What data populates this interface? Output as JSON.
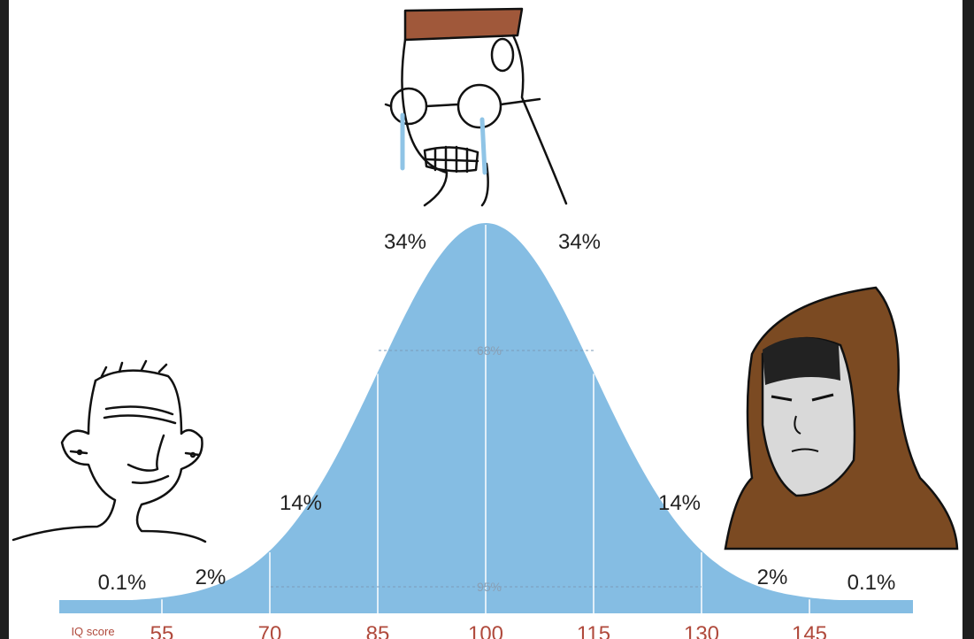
{
  "percentages": [
    "0.1%",
    "2%",
    "14%",
    "34%",
    "34%",
    "14%",
    "2%",
    "0.1%"
  ],
  "brackets": [
    "68%",
    "95%"
  ],
  "axis": {
    "label": "IQ score",
    "ticks": [
      "55",
      "70",
      "85",
      "100",
      "115",
      "130",
      "145"
    ]
  }
}
